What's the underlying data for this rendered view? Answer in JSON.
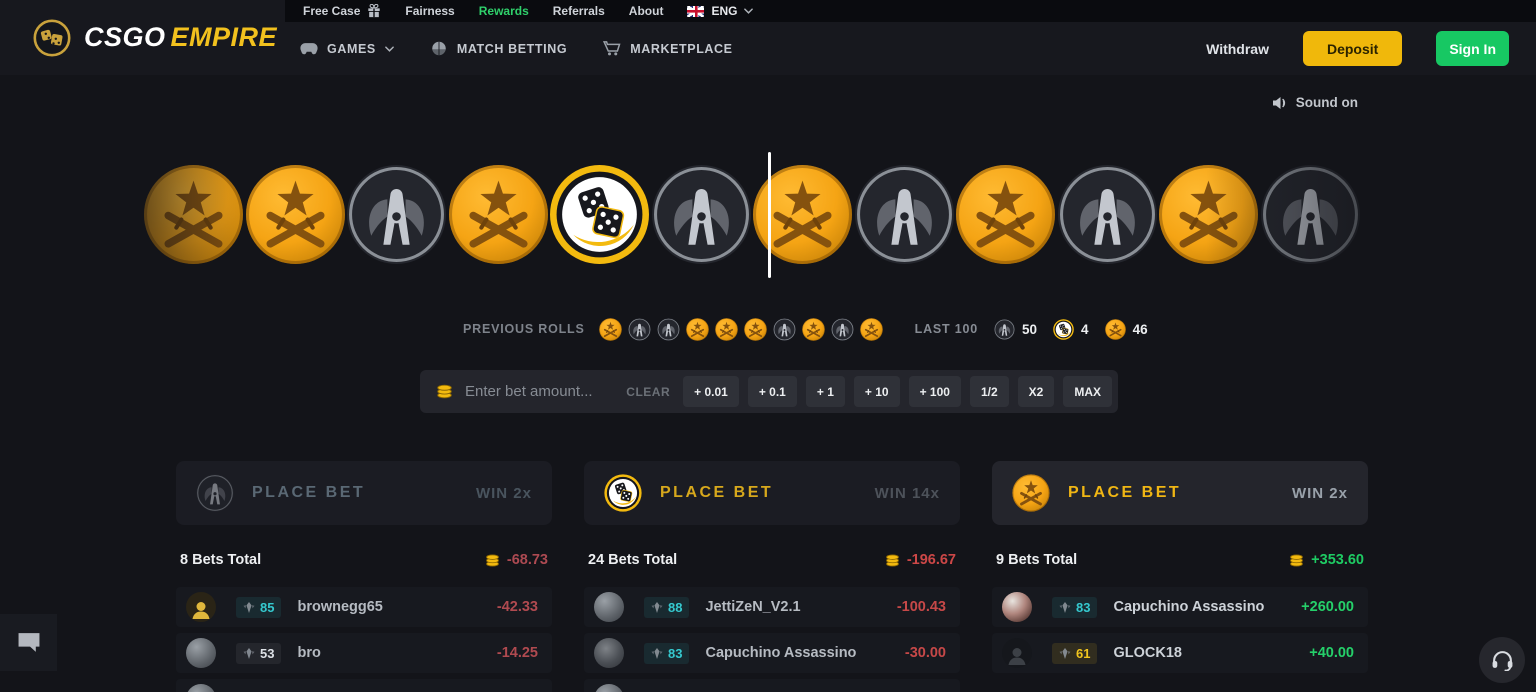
{
  "colors": {
    "accent_gold": "#f0b80b",
    "signin_green": "#17c863",
    "rewards_green": "#2fd06b",
    "lose_red": "#c64848",
    "win_green": "#1ecb63",
    "tier_cyan": "#35c9cf",
    "tier_gold": "#f2c51d",
    "tier_white": "#dde1e6"
  },
  "topbar": {
    "items": [
      {
        "label": "Free Case",
        "icon": "gift-icon"
      },
      {
        "label": "Fairness"
      },
      {
        "label": "Rewards",
        "highlight": true
      },
      {
        "label": "Referrals"
      },
      {
        "label": "About"
      }
    ],
    "language": {
      "flag": "uk-flag-icon",
      "label": "ENG"
    }
  },
  "header": {
    "logo": {
      "part1": "CSGO",
      "part2": "EMPIRE"
    },
    "nav": [
      {
        "label": "GAMES",
        "icon": "gamepad-icon",
        "has_dropdown": true
      },
      {
        "label": "MATCH BETTING",
        "icon": "helmet-icon",
        "has_dropdown": false
      },
      {
        "label": "MARKETPLACE",
        "icon": "cart-icon",
        "has_dropdown": false
      }
    ],
    "withdraw": "Withdraw",
    "deposit": "Deposit",
    "sign_in": "Sign In"
  },
  "sound_label": "Sound on",
  "wheel": {
    "coins": [
      "t",
      "t",
      "ct",
      "t",
      "bonus",
      "ct",
      "t",
      "ct",
      "t",
      "ct",
      "t",
      "ct"
    ],
    "selected_index": 4
  },
  "previous_rolls": {
    "label": "PREVIOUS ROLLS",
    "coins": [
      "t",
      "ct",
      "ct",
      "t",
      "t",
      "t",
      "ct",
      "t",
      "ct",
      "t"
    ]
  },
  "last100": {
    "label": "LAST 100",
    "stats": [
      {
        "coin": "ct",
        "value": "50"
      },
      {
        "coin": "bonus",
        "value": "4"
      },
      {
        "coin": "t",
        "value": "46"
      }
    ]
  },
  "bet_controls": {
    "coin_icon": "coin-stack-icon",
    "placeholder": "Enter bet amount...",
    "clear_label": "CLEAR",
    "buttons": [
      "+ 0.01",
      "+ 0.1",
      "+ 1",
      "+ 10",
      "+ 100",
      "1/2",
      "X2",
      "MAX"
    ]
  },
  "panels": [
    {
      "side": "ct",
      "state": "lost",
      "title": "PLACE BET",
      "win_label": "WIN 2x",
      "total_label": "8 Bets Total",
      "total_value": "-68.73",
      "rows": [
        {
          "level": "85",
          "tier": "cyan",
          "name": "brownegg65",
          "amount": "-42.33",
          "avatar": "default-yellow"
        },
        {
          "level": "53",
          "tier": "white",
          "name": "bro",
          "amount": "-14.25",
          "avatar": "photo-gray"
        }
      ],
      "partial_next_row": true
    },
    {
      "side": "bonus",
      "state": "lost",
      "title": "PLACE BET",
      "win_label": "WIN 14x",
      "total_label": "24 Bets Total",
      "total_value": "-196.67",
      "rows": [
        {
          "level": "88",
          "tier": "cyan",
          "name": "JettiZeN_V2.1",
          "amount": "-100.43",
          "avatar": "photo-gray"
        },
        {
          "level": "83",
          "tier": "cyan",
          "name": "Capuchino Assassino",
          "amount": "-30.00",
          "avatar": "photo-dark"
        }
      ],
      "partial_next_row": true
    },
    {
      "side": "t",
      "state": "won",
      "title": "PLACE BET",
      "win_label": "WIN 2x",
      "total_label": "9 Bets Total",
      "total_value": "+353.60",
      "rows": [
        {
          "level": "83",
          "tier": "cyan",
          "name": "Capuchino Assassino",
          "amount": "+260.00",
          "avatar": "photo-light"
        },
        {
          "level": "61",
          "tier": "gold",
          "name": "GLOCK18",
          "amount": "+40.00",
          "avatar": "silhouette-dark"
        }
      ],
      "partial_next_row": false
    }
  ]
}
